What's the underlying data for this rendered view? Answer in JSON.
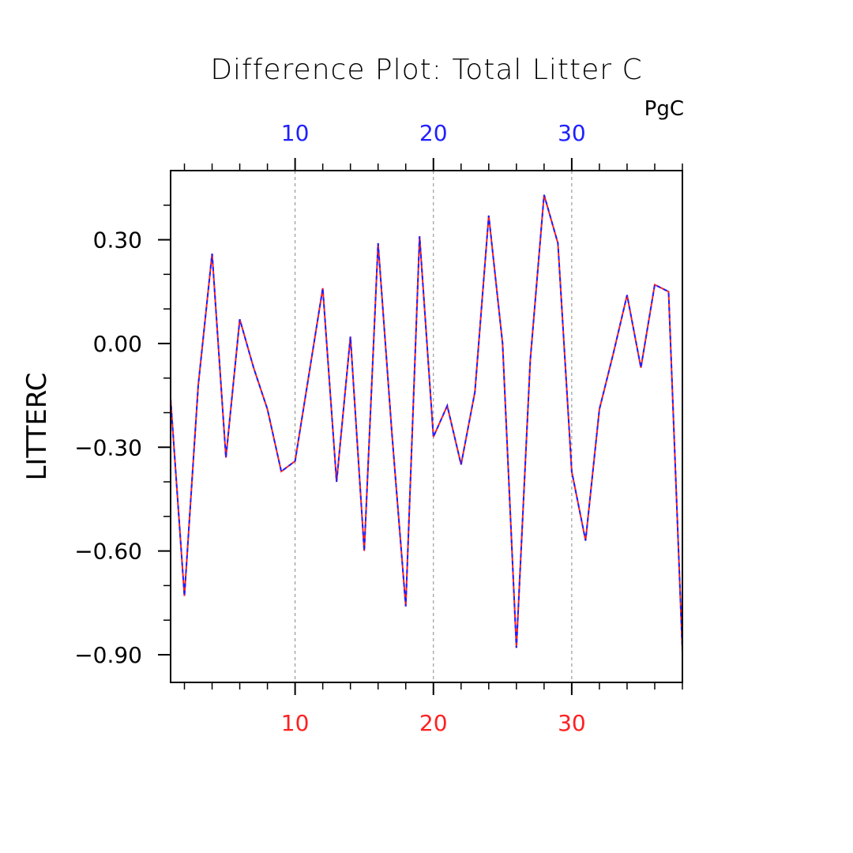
{
  "chart_data": {
    "type": "line",
    "title": "Difference Plot: Total Litter C",
    "units": "PgC",
    "ylabel": "LITTERC",
    "xlabel": "",
    "xlim": [
      1,
      38
    ],
    "ylim": [
      -0.98,
      0.5
    ],
    "x_major_ticks": [
      10,
      20,
      30
    ],
    "x_tick_labels_bottom": [
      "10",
      "20",
      "30"
    ],
    "x_tick_labels_top": [
      "10",
      "20",
      "30"
    ],
    "y_major_ticks": [
      0.3,
      0.0,
      -0.3,
      -0.6,
      -0.9
    ],
    "y_tick_labels": [
      "0.30",
      "0.00",
      "−0.30",
      "−0.60",
      "−0.90"
    ],
    "grid": "vertical dashed at major x ticks",
    "colors": {
      "bottom_axis_labels": "#ff2020",
      "top_axis_labels": "#2020ff",
      "series_a": "#ff2020",
      "series_b": "#2020ff"
    },
    "x": [
      1,
      2,
      3,
      4,
      5,
      6,
      7,
      8,
      9,
      10,
      11,
      12,
      13,
      14,
      15,
      16,
      17,
      18,
      19,
      20,
      21,
      22,
      23,
      24,
      25,
      26,
      27,
      28,
      29,
      30,
      31,
      32,
      33,
      34,
      35,
      36,
      37,
      38
    ],
    "series": [
      {
        "line_color": "#ff2020",
        "line_style": "solid",
        "values": [
          -0.16,
          -0.73,
          -0.12,
          0.26,
          -0.33,
          0.07,
          -0.07,
          -0.19,
          -0.37,
          -0.34,
          -0.09,
          0.16,
          -0.4,
          0.02,
          -0.6,
          0.29,
          -0.26,
          -0.76,
          0.31,
          -0.27,
          -0.18,
          -0.35,
          -0.14,
          0.37,
          0.0,
          -0.88,
          -0.05,
          0.43,
          0.29,
          -0.37,
          -0.57,
          -0.19,
          -0.03,
          0.14,
          -0.07,
          0.17,
          0.15,
          -0.89
        ]
      },
      {
        "line_color": "#2020ff",
        "line_style": "dashed",
        "values": [
          -0.16,
          -0.73,
          -0.12,
          0.26,
          -0.33,
          0.07,
          -0.07,
          -0.19,
          -0.37,
          -0.34,
          -0.09,
          0.16,
          -0.4,
          0.02,
          -0.6,
          0.29,
          -0.26,
          -0.76,
          0.31,
          -0.27,
          -0.18,
          -0.35,
          -0.14,
          0.37,
          0.0,
          -0.88,
          -0.05,
          0.43,
          0.29,
          -0.37,
          -0.57,
          -0.19,
          -0.03,
          0.14,
          -0.07,
          0.17,
          0.15,
          -0.89
        ]
      }
    ]
  }
}
